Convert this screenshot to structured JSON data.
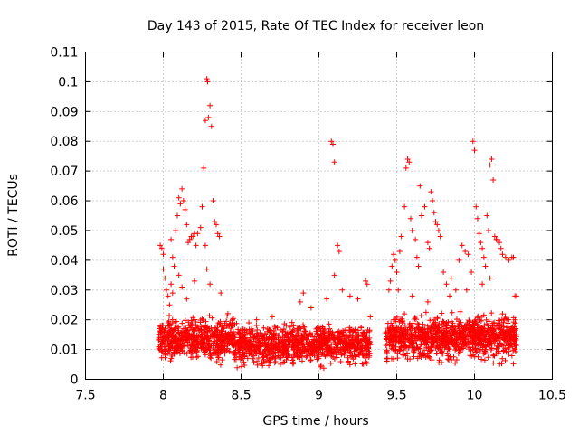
{
  "chart_data": {
    "type": "scatter",
    "title": "Day 143 of 2015, Rate Of TEC Index for receiver leon",
    "xlabel": "GPS time / hours",
    "ylabel": "ROTI / TECUs",
    "xlim": [
      7.5,
      10.5
    ],
    "ylim": [
      0,
      0.11
    ],
    "x_ticks": [
      "7.5",
      "8",
      "8.5",
      "9",
      "9.5",
      "10",
      "10.5"
    ],
    "x_tick_values": [
      7.5,
      8,
      8.5,
      9,
      9.5,
      10,
      10.5
    ],
    "y_ticks": [
      "0",
      "0.01",
      "0.02",
      "0.03",
      "0.04",
      "0.05",
      "0.06",
      "0.07",
      "0.08",
      "0.09",
      "0.1",
      "0.11"
    ],
    "y_tick_values": [
      0,
      0.01,
      0.02,
      0.03,
      0.04,
      0.05,
      0.06,
      0.07,
      0.08,
      0.09,
      0.1,
      0.11
    ],
    "grid": true,
    "marker": "plus",
    "marker_color": "#ff0000",
    "segments": [
      {
        "x_start": 7.97,
        "x_end": 9.33
      },
      {
        "x_start": 9.43,
        "x_end": 10.27
      }
    ],
    "series": [
      {
        "name": "ROTI",
        "points": [
          [
            7.98,
            0.045
          ],
          [
            7.99,
            0.044
          ],
          [
            8.0,
            0.042
          ],
          [
            8.0,
            0.037
          ],
          [
            8.01,
            0.034
          ],
          [
            8.02,
            0.03
          ],
          [
            8.03,
            0.028
          ],
          [
            8.04,
            0.025
          ],
          [
            8.05,
            0.032
          ],
          [
            8.06,
            0.029
          ],
          [
            8.05,
            0.047
          ],
          [
            8.06,
            0.041
          ],
          [
            8.07,
            0.038
          ],
          [
            8.08,
            0.05
          ],
          [
            8.09,
            0.055
          ],
          [
            8.1,
            0.061
          ],
          [
            8.11,
            0.059
          ],
          [
            8.12,
            0.064
          ],
          [
            8.13,
            0.06
          ],
          [
            8.14,
            0.057
          ],
          [
            8.15,
            0.052
          ],
          [
            8.16,
            0.046
          ],
          [
            8.17,
            0.047
          ],
          [
            8.18,
            0.048
          ],
          [
            8.19,
            0.048
          ],
          [
            8.2,
            0.049
          ],
          [
            8.21,
            0.045
          ],
          [
            8.22,
            0.049
          ],
          [
            8.24,
            0.051
          ],
          [
            8.25,
            0.058
          ],
          [
            8.26,
            0.071
          ],
          [
            8.27,
            0.087
          ],
          [
            8.28,
            0.101
          ],
          [
            8.285,
            0.1
          ],
          [
            8.29,
            0.088
          ],
          [
            8.3,
            0.092
          ],
          [
            8.31,
            0.085
          ],
          [
            8.32,
            0.06
          ],
          [
            8.33,
            0.053
          ],
          [
            8.34,
            0.052
          ],
          [
            8.35,
            0.049
          ],
          [
            8.36,
            0.048
          ],
          [
            8.27,
            0.045
          ],
          [
            8.28,
            0.037
          ],
          [
            8.1,
            0.035
          ],
          [
            8.12,
            0.031
          ],
          [
            8.2,
            0.033
          ],
          [
            8.3,
            0.032
          ],
          [
            8.37,
            0.029
          ],
          [
            8.15,
            0.027
          ],
          [
            9.08,
            0.08
          ],
          [
            9.09,
            0.079
          ],
          [
            9.1,
            0.073
          ],
          [
            9.12,
            0.045
          ],
          [
            9.13,
            0.043
          ],
          [
            9.1,
            0.035
          ],
          [
            9.15,
            0.03
          ],
          [
            9.2,
            0.028
          ],
          [
            9.25,
            0.027
          ],
          [
            9.3,
            0.033
          ],
          [
            9.31,
            0.032
          ],
          [
            9.33,
            0.021
          ],
          [
            9.05,
            0.027
          ],
          [
            8.9,
            0.029
          ],
          [
            8.88,
            0.026
          ],
          [
            8.95,
            0.024
          ],
          [
            8.7,
            0.021
          ],
          [
            8.6,
            0.02
          ],
          [
            8.55,
            0.019
          ],
          [
            8.45,
            0.016
          ],
          [
            9.45,
            0.03
          ],
          [
            9.46,
            0.033
          ],
          [
            9.47,
            0.038
          ],
          [
            9.48,
            0.042
          ],
          [
            9.49,
            0.04
          ],
          [
            9.5,
            0.036
          ],
          [
            9.51,
            0.03
          ],
          [
            9.52,
            0.043
          ],
          [
            9.53,
            0.048
          ],
          [
            9.55,
            0.058
          ],
          [
            9.56,
            0.071
          ],
          [
            9.57,
            0.074
          ],
          [
            9.58,
            0.073
          ],
          [
            9.59,
            0.054
          ],
          [
            9.6,
            0.05
          ],
          [
            9.62,
            0.047
          ],
          [
            9.63,
            0.041
          ],
          [
            9.64,
            0.038
          ],
          [
            9.65,
            0.065
          ],
          [
            9.66,
            0.055
          ],
          [
            9.68,
            0.058
          ],
          [
            9.7,
            0.046
          ],
          [
            9.71,
            0.044
          ],
          [
            9.72,
            0.063
          ],
          [
            9.73,
            0.06
          ],
          [
            9.74,
            0.056
          ],
          [
            9.75,
            0.053
          ],
          [
            9.76,
            0.052
          ],
          [
            9.77,
            0.05
          ],
          [
            9.78,
            0.048
          ],
          [
            9.8,
            0.036
          ],
          [
            9.82,
            0.032
          ],
          [
            9.85,
            0.034
          ],
          [
            9.88,
            0.03
          ],
          [
            9.9,
            0.04
          ],
          [
            9.92,
            0.045
          ],
          [
            9.94,
            0.043
          ],
          [
            9.96,
            0.042
          ],
          [
            9.98,
            0.036
          ],
          [
            9.99,
            0.08
          ],
          [
            10.0,
            0.077
          ],
          [
            10.01,
            0.058
          ],
          [
            10.02,
            0.054
          ],
          [
            10.03,
            0.049
          ],
          [
            10.04,
            0.046
          ],
          [
            10.05,
            0.044
          ],
          [
            10.06,
            0.041
          ],
          [
            10.07,
            0.038
          ],
          [
            10.08,
            0.055
          ],
          [
            10.09,
            0.05
          ],
          [
            10.1,
            0.072
          ],
          [
            10.11,
            0.074
          ],
          [
            10.12,
            0.067
          ],
          [
            10.13,
            0.048
          ],
          [
            10.14,
            0.047
          ],
          [
            10.15,
            0.047
          ],
          [
            10.16,
            0.046
          ],
          [
            10.17,
            0.044
          ],
          [
            10.18,
            0.042
          ],
          [
            10.2,
            0.041
          ],
          [
            10.22,
            0.04
          ],
          [
            10.24,
            0.041
          ],
          [
            10.25,
            0.041
          ],
          [
            10.26,
            0.028
          ],
          [
            10.27,
            0.028
          ],
          [
            10.1,
            0.034
          ],
          [
            10.05,
            0.032
          ],
          [
            9.95,
            0.03
          ],
          [
            9.84,
            0.028
          ],
          [
            9.7,
            0.026
          ],
          [
            9.6,
            0.028
          ],
          [
            9.55,
            0.022
          ],
          [
            9.48,
            0.02
          ],
          [
            10.18,
            0.022
          ],
          [
            10.22,
            0.02
          ]
        ]
      }
    ],
    "dense_bands": [
      {
        "x_start": 7.97,
        "x_end": 8.45,
        "y_min": 0.004,
        "y_max": 0.023
      },
      {
        "x_start": 8.45,
        "x_end": 9.33,
        "y_min": 0.003,
        "y_max": 0.02
      },
      {
        "x_start": 9.43,
        "x_end": 10.27,
        "y_min": 0.004,
        "y_max": 0.024
      }
    ]
  }
}
